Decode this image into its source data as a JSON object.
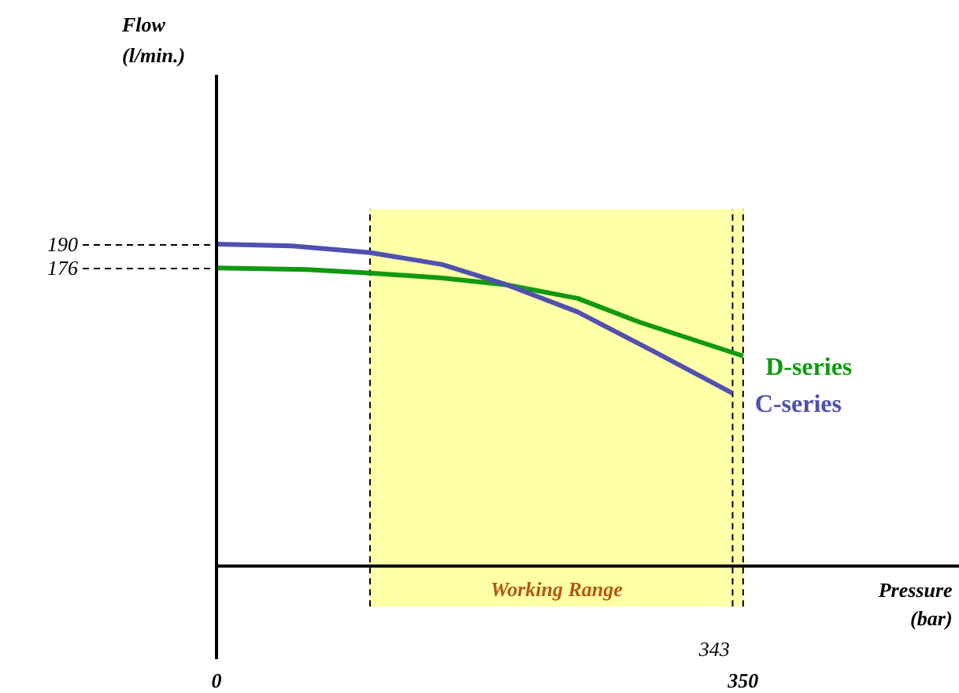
{
  "chart_data": {
    "type": "line",
    "xlabel": "Pressure\n(bar)",
    "ylabel": "Flow\n(l/min.)",
    "xlim": [
      0,
      494
    ],
    "ylim": [
      -55,
      290
    ],
    "xticks": [
      0,
      350
    ],
    "yticks": [
      176,
      190
    ],
    "series": [
      {
        "name": "D-series",
        "color": "#119911",
        "x": [
          0,
          60,
          102,
          150,
          193,
          240,
          281,
          350
        ],
        "values": [
          176,
          175,
          173,
          170,
          166,
          158,
          144,
          124
        ]
      },
      {
        "name": "C-series",
        "color": "#5050b0",
        "x": [
          0,
          50,
          102,
          150,
          193,
          240,
          290,
          343
        ],
        "values": [
          190,
          189,
          185,
          178,
          166,
          150,
          127,
          102
        ]
      }
    ],
    "bands": [
      {
        "axis": "x",
        "from": 102,
        "to": 350,
        "label": "Working Range",
        "color": "#ffffa8"
      }
    ],
    "ref_lines": [
      {
        "axis": "x",
        "value": 102
      },
      {
        "axis": "x",
        "value": 343,
        "label": "343"
      },
      {
        "axis": "x",
        "value": 350
      }
    ],
    "legend": "right",
    "grid": false,
    "line_style": "solid",
    "marker": "none"
  }
}
